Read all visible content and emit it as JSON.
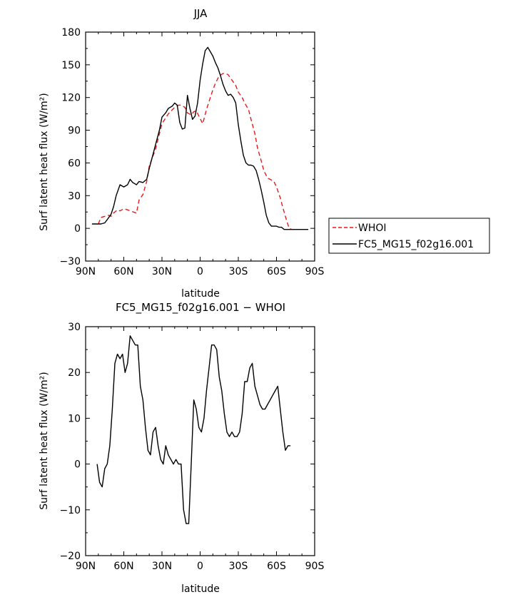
{
  "chart_data": [
    {
      "type": "line",
      "title": "JJA",
      "xlabel": "latitude",
      "ylabel": "Surf latent heat flux (W/m²)",
      "ylim": [
        -30,
        180
      ],
      "xlim": [
        -90,
        90
      ],
      "x_ticks": [
        {
          "value": -90,
          "label": "90N"
        },
        {
          "value": -60,
          "label": "60N"
        },
        {
          "value": -30,
          "label": "30N"
        },
        {
          "value": 0,
          "label": "0"
        },
        {
          "value": 30,
          "label": "30S"
        },
        {
          "value": 60,
          "label": "60S"
        },
        {
          "value": 90,
          "label": "90S"
        }
      ],
      "y_ticks": [
        {
          "value": -30,
          "label": "−30"
        },
        {
          "value": 0,
          "label": "0"
        },
        {
          "value": 30,
          "label": "30"
        },
        {
          "value": 60,
          "label": "60"
        },
        {
          "value": 90,
          "label": "90"
        },
        {
          "value": 120,
          "label": "120"
        },
        {
          "value": 150,
          "label": "150"
        },
        {
          "value": 180,
          "label": "180"
        }
      ],
      "legend": {
        "placement": "right"
      },
      "series": [
        {
          "name": "WHOI",
          "color": "#e41a1c",
          "style": "dashed",
          "x": [
            -80,
            -78,
            -75,
            -72,
            -70,
            -68,
            -65,
            -63,
            -60,
            -57,
            -55,
            -50,
            -48,
            -45,
            -42,
            -40,
            -35,
            -30,
            -25,
            -20,
            -17,
            -15,
            -12,
            -10,
            -7,
            -5,
            -3,
            -1,
            2,
            5,
            8,
            10,
            12,
            15,
            18,
            20,
            22,
            25,
            28,
            30,
            33,
            35,
            38,
            40,
            43,
            45,
            48,
            50,
            53,
            55,
            58,
            60,
            63,
            65,
            68,
            70,
            72
          ],
          "y": [
            4,
            10,
            11,
            12,
            11,
            14,
            17,
            16,
            18,
            17,
            16,
            14,
            26,
            31,
            43,
            57,
            73,
            96,
            105,
            111,
            113,
            113,
            111,
            106,
            104,
            107,
            108,
            103,
            96,
            109,
            120,
            127,
            133,
            140,
            142,
            142,
            141,
            136,
            131,
            125,
            120,
            115,
            109,
            100,
            87,
            74,
            62,
            53,
            46,
            45,
            43,
            38,
            28,
            19,
            7,
            0,
            -1
          ]
        },
        {
          "name": "FC5_MG15_f02g16.001",
          "color": "#000000",
          "style": "solid",
          "x": [
            -85,
            -82,
            -80,
            -78,
            -75,
            -73,
            -70,
            -68,
            -66,
            -63,
            -60,
            -57,
            -55,
            -53,
            -50,
            -48,
            -45,
            -42,
            -40,
            -37,
            -35,
            -32,
            -30,
            -27,
            -25,
            -22,
            -20,
            -18,
            -16,
            -14,
            -12,
            -10,
            -8,
            -6,
            -4,
            -2,
            0,
            2,
            4,
            6,
            8,
            10,
            12,
            14,
            16,
            18,
            20,
            22,
            24,
            26,
            28,
            30,
            32,
            34,
            36,
            38,
            40,
            42,
            44,
            46,
            48,
            50,
            52,
            54,
            56,
            58,
            60,
            62,
            64,
            66,
            68,
            70,
            72,
            75,
            78,
            80,
            83,
            85
          ],
          "y": [
            4,
            4,
            4,
            4,
            5,
            8,
            13,
            20,
            30,
            40,
            38,
            40,
            45,
            42,
            40,
            43,
            42,
            45,
            55,
            68,
            77,
            90,
            102,
            106,
            110,
            112,
            115,
            113,
            97,
            91,
            92,
            122,
            110,
            100,
            103,
            115,
            136,
            151,
            163,
            166,
            162,
            158,
            152,
            147,
            140,
            132,
            126,
            122,
            123,
            120,
            115,
            95,
            80,
            67,
            60,
            58,
            58,
            57,
            53,
            45,
            35,
            24,
            12,
            5,
            2,
            2,
            2,
            1,
            1,
            -1,
            -1,
            -1,
            -1,
            -1,
            -1,
            -1,
            -1,
            -1
          ]
        }
      ]
    },
    {
      "type": "line",
      "title": "FC5_MG15_f02g16.001 − WHOI",
      "xlabel": "latitude",
      "ylabel": "Surf latent heat flux (W/m²)",
      "ylim": [
        -20,
        30
      ],
      "xlim": [
        -90,
        90
      ],
      "x_ticks": [
        {
          "value": -90,
          "label": "90N"
        },
        {
          "value": -60,
          "label": "60N"
        },
        {
          "value": -30,
          "label": "30N"
        },
        {
          "value": 0,
          "label": "0"
        },
        {
          "value": 30,
          "label": "30S"
        },
        {
          "value": 60,
          "label": "60S"
        },
        {
          "value": 90,
          "label": "90S"
        }
      ],
      "y_ticks": [
        {
          "value": -20,
          "label": "−20"
        },
        {
          "value": -10,
          "label": "−10"
        },
        {
          "value": 0,
          "label": "0"
        },
        {
          "value": 10,
          "label": "10"
        },
        {
          "value": 20,
          "label": "20"
        },
        {
          "value": 30,
          "label": "30"
        }
      ],
      "series": [
        {
          "color": "#000000",
          "style": "solid",
          "x": [
            -81,
            -79,
            -77,
            -75,
            -73,
            -71,
            -69,
            -67,
            -65,
            -63,
            -61,
            -59,
            -57,
            -55,
            -53,
            -51,
            -49,
            -47,
            -45,
            -43,
            -41,
            -39,
            -37,
            -35,
            -33,
            -31,
            -29,
            -27,
            -25,
            -23,
            -21,
            -19,
            -17,
            -15,
            -13,
            -11,
            -9,
            -7,
            -5,
            -3,
            -1,
            1,
            3,
            5,
            7,
            9,
            11,
            13,
            15,
            17,
            19,
            21,
            23,
            25,
            27,
            29,
            31,
            33,
            35,
            37,
            39,
            41,
            43,
            45,
            47,
            49,
            51,
            53,
            55,
            57,
            59,
            61,
            63,
            65,
            67,
            69,
            71
          ],
          "y": [
            0,
            -4,
            -5,
            -1,
            0,
            4,
            12,
            22,
            24,
            23,
            24,
            20,
            22,
            28,
            27,
            26,
            26,
            17,
            14,
            8,
            3,
            2,
            7,
            8,
            4,
            1,
            0,
            4,
            2,
            1,
            0,
            1,
            0,
            0,
            -10,
            -13,
            -13,
            0,
            14,
            12,
            8,
            7,
            10,
            16,
            21,
            26,
            26,
            25,
            19,
            16,
            11,
            7,
            6,
            7,
            6,
            6,
            7,
            11,
            18,
            18,
            21,
            22,
            17,
            15,
            13,
            12,
            12,
            13,
            14,
            15,
            16,
            17,
            12,
            7,
            3,
            4,
            4
          ]
        }
      ]
    }
  ]
}
